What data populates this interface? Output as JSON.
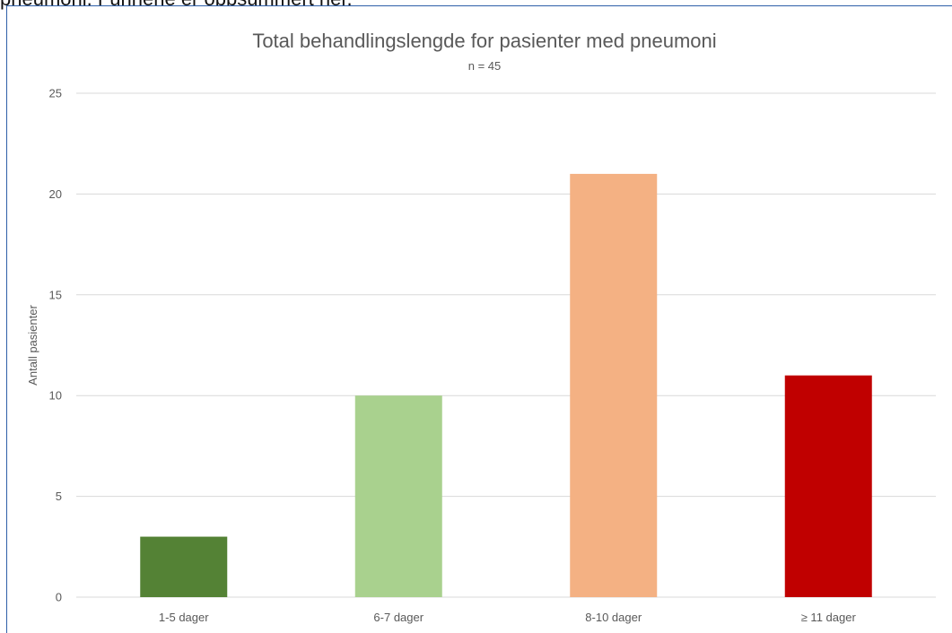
{
  "page": {
    "cut_text": "pneumoni. Funnene er oppsummert her."
  },
  "chart_data": {
    "type": "bar",
    "title": "Total behandlingslengde for pasienter med pneumoni",
    "subtitle": "n = 45",
    "xlabel": "",
    "ylabel": "Antall pasienter",
    "categories": [
      "1-5 dager",
      "6-7 dager",
      "8-10 dager",
      "≥ 11 dager"
    ],
    "values": [
      3,
      10,
      21,
      11
    ],
    "colors": [
      "#548235",
      "#a9d18e",
      "#f4b183",
      "#c00000"
    ],
    "ylim": [
      0,
      25
    ],
    "yticks": [
      0,
      5,
      10,
      15,
      20,
      25
    ],
    "grid": true,
    "gridColor": "#d9d9d9"
  }
}
